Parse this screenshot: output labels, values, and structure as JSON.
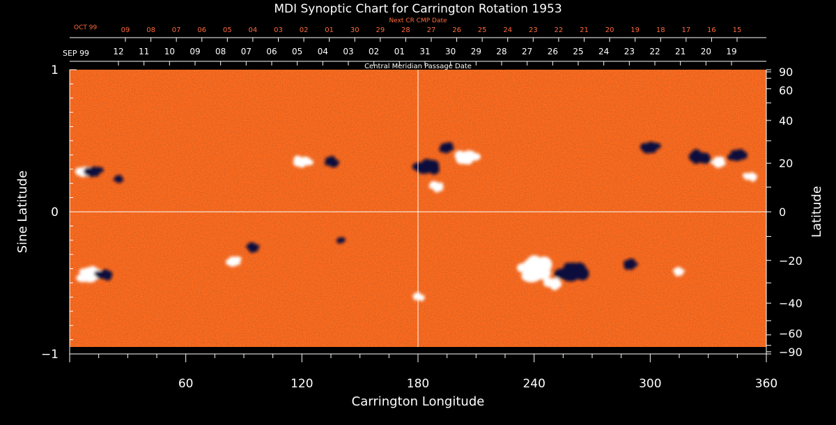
{
  "chart_data": {
    "type": "heatmap",
    "title": "MDI Synoptic Chart for Carrington Rotation 1953",
    "xlabel": "Carrington Longitude",
    "ylabel_left": "Sine Latitude",
    "ylabel_right": "Latitude",
    "xlim": [
      0,
      360
    ],
    "ylim": [
      -1,
      1
    ],
    "x_ticks": [
      60,
      120,
      180,
      240,
      300,
      360
    ],
    "left_ticks": [
      -1,
      0,
      1
    ],
    "right_ticks": [
      90,
      60,
      40,
      20,
      0,
      -20,
      -40,
      -60,
      -90
    ],
    "right_tick_labels": [
      "90",
      "60",
      "40",
      "20",
      "0",
      "−20",
      "−40",
      "−60",
      "−90"
    ],
    "left_tick_labels": [
      "−1",
      "0",
      "1"
    ],
    "gridlines": {
      "vertical_x": 180,
      "horizontal_y": 0
    },
    "colors": {
      "background": "#ff6a1e",
      "positive": "#ffffff",
      "negative": "#0a0a3c",
      "axis": "#ffffff",
      "top_axis_label": "#ff6a3c"
    },
    "top_axis_next_cr": {
      "title": "Next CR CMP Date",
      "month_label": "OCT 99",
      "dates": [
        "09",
        "08",
        "07",
        "06",
        "05",
        "04",
        "03",
        "02",
        "01",
        "30",
        "29",
        "28",
        "27",
        "26",
        "25",
        "24",
        "23",
        "22",
        "21",
        "20",
        "19",
        "18",
        "17",
        "16",
        "15"
      ]
    },
    "top_axis_cmp": {
      "title": "Central Meridian Passage Date",
      "month_label": "SEP 99",
      "dates": [
        "12",
        "11",
        "10",
        "09",
        "08",
        "07",
        "06",
        "05",
        "04",
        "03",
        "02",
        "01",
        "31",
        "30",
        "29",
        "28",
        "27",
        "26",
        "25",
        "24",
        "23",
        "22",
        "21",
        "20",
        "19"
      ]
    },
    "regions": [
      {
        "lon": 10,
        "sinlat": 0.28,
        "polarity": "mixed",
        "size": 1.2
      },
      {
        "lon": 25,
        "sinlat": 0.23,
        "polarity": "negative",
        "size": 0.7
      },
      {
        "lon": 10,
        "sinlat": -0.44,
        "polarity": "positive",
        "size": 1.6
      },
      {
        "lon": 18,
        "sinlat": -0.44,
        "polarity": "negative",
        "size": 1.1
      },
      {
        "lon": 95,
        "sinlat": -0.25,
        "polarity": "negative",
        "size": 0.9
      },
      {
        "lon": 85,
        "sinlat": -0.35,
        "polarity": "positive",
        "size": 1.0
      },
      {
        "lon": 120,
        "sinlat": 0.35,
        "polarity": "positive",
        "size": 1.2
      },
      {
        "lon": 135,
        "sinlat": 0.35,
        "polarity": "negative",
        "size": 1.0
      },
      {
        "lon": 140,
        "sinlat": -0.2,
        "polarity": "negative",
        "size": 0.6
      },
      {
        "lon": 185,
        "sinlat": 0.32,
        "polarity": "negative",
        "size": 1.6
      },
      {
        "lon": 190,
        "sinlat": 0.18,
        "polarity": "positive",
        "size": 1.0
      },
      {
        "lon": 195,
        "sinlat": 0.45,
        "polarity": "negative",
        "size": 1.0
      },
      {
        "lon": 205,
        "sinlat": 0.38,
        "polarity": "positive",
        "size": 1.5
      },
      {
        "lon": 180,
        "sinlat": -0.6,
        "polarity": "positive",
        "size": 0.8
      },
      {
        "lon": 240,
        "sinlat": -0.4,
        "polarity": "positive",
        "size": 2.4
      },
      {
        "lon": 260,
        "sinlat": -0.42,
        "polarity": "negative",
        "size": 2.0
      },
      {
        "lon": 250,
        "sinlat": -0.5,
        "polarity": "positive",
        "size": 1.2
      },
      {
        "lon": 290,
        "sinlat": -0.37,
        "polarity": "negative",
        "size": 1.0
      },
      {
        "lon": 300,
        "sinlat": 0.45,
        "polarity": "negative",
        "size": 1.2
      },
      {
        "lon": 325,
        "sinlat": 0.38,
        "polarity": "negative",
        "size": 1.4
      },
      {
        "lon": 335,
        "sinlat": 0.35,
        "polarity": "positive",
        "size": 1.0
      },
      {
        "lon": 345,
        "sinlat": 0.4,
        "polarity": "negative",
        "size": 1.2
      },
      {
        "lon": 352,
        "sinlat": 0.25,
        "polarity": "positive",
        "size": 0.9
      },
      {
        "lon": 315,
        "sinlat": -0.42,
        "polarity": "positive",
        "size": 0.8
      }
    ]
  }
}
